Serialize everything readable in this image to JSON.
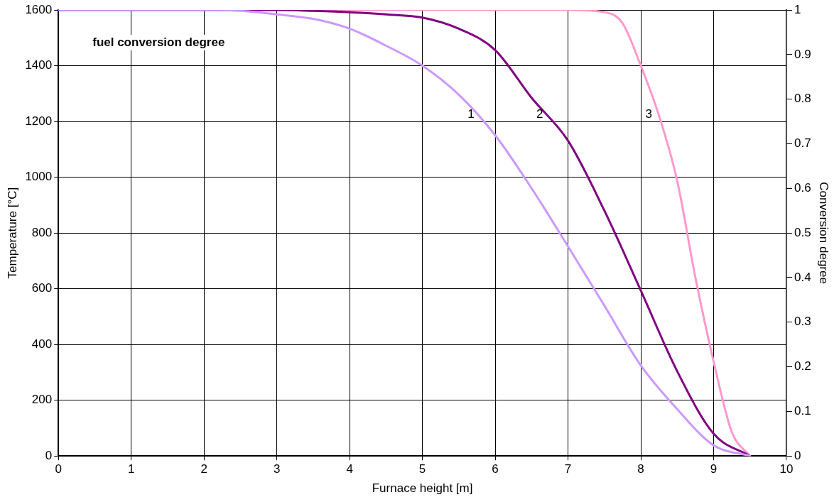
{
  "chart_data": {
    "type": "line",
    "xlabel": "Furnace height [m]",
    "ylabel": "Temperature [°C]",
    "y2label": "Conversion degree",
    "annotations": [
      "fuel conversion degree"
    ],
    "xlim": [
      0,
      10
    ],
    "xticks": [
      0,
      1,
      2,
      3,
      4,
      5,
      6,
      7,
      8,
      9,
      10
    ],
    "ylim": [
      0,
      1600
    ],
    "yticks": [
      0,
      200,
      400,
      600,
      800,
      1000,
      1200,
      1400,
      1600
    ],
    "y2lim": [
      0,
      1
    ],
    "y2ticks": [
      0,
      0.1,
      0.2,
      0.3,
      0.4,
      0.5,
      0.6,
      0.7,
      0.8,
      0.9,
      1
    ],
    "grid": true,
    "legend": false,
    "marker": "none",
    "line_style": "solid",
    "series": [
      {
        "axis": "y2",
        "name": "1",
        "color": "#cc99ff",
        "x": [
          0,
          1,
          2,
          2.5,
          3,
          3.5,
          4,
          4.5,
          5,
          5.5,
          6,
          6.5,
          7,
          7.5,
          8,
          8.5,
          9,
          9.5
        ],
        "values": [
          1,
          1,
          1,
          0.998,
          0.99,
          0.98,
          0.958,
          0.92,
          0.875,
          0.81,
          0.719,
          0.6,
          0.47,
          0.337,
          0.203,
          0.105,
          0.024,
          0
        ]
      },
      {
        "axis": "y2",
        "name": "2",
        "color": "#800080",
        "x": [
          0,
          1,
          2,
          3,
          3.5,
          4,
          4.5,
          5,
          5.5,
          6,
          6.5,
          7,
          7.5,
          8,
          8.5,
          9,
          9.5
        ],
        "values": [
          1,
          1,
          1,
          1,
          0.998,
          0.995,
          0.99,
          0.983,
          0.958,
          0.91,
          0.803,
          0.707,
          0.55,
          0.371,
          0.19,
          0.05,
          0
        ]
      },
      {
        "axis": "y2",
        "name": "3",
        "color": "#ff99cc",
        "x": [
          0,
          2,
          4,
          6,
          7,
          7.5,
          7.75,
          8,
          8.25,
          8.5,
          8.75,
          9,
          9.25,
          9.5
        ],
        "values": [
          1,
          1,
          1,
          1,
          1,
          0.995,
          0.97,
          0.875,
          0.763,
          0.617,
          0.4,
          0.212,
          0.054,
          0
        ]
      }
    ]
  }
}
